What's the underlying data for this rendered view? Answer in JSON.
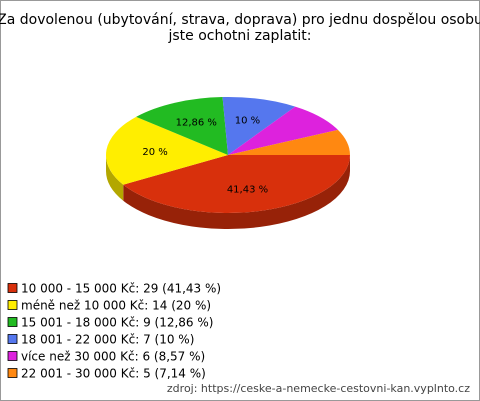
{
  "chart_data": {
    "type": "pie",
    "title": [
      "Za dovolenou (ubytování, strava, doprava) pro jednu dospělou osobu",
      "jste ochotni zaplatit:"
    ],
    "categories": [
      "10 000 - 15 000 Kč: 29 (41,43 %)",
      "méně než 10 000 Kč: 14 (20 %)",
      "15 001 - 18 000 Kč: 9 (12,86 %)",
      "18 001 - 22 000 Kč: 7 (10 %)",
      "více než 30 000 Kč: 6 (8,57 %)",
      "22 001 - 30 000 Kč: 5 (7,14 %)"
    ],
    "values": [
      41.43,
      20,
      12.86,
      10,
      8.57,
      7.14
    ],
    "value_labels": [
      "41,43 %",
      "20 %",
      "12,86 %",
      "10 %",
      null,
      null
    ],
    "colors": [
      "#d8300c",
      "#ffee00",
      "#22bb22",
      "#5577ee",
      "#dd22dd",
      "#ff8811"
    ],
    "source": "zdroj: https://ceske-a-nemecke-cestovni-kan.vyplnto.cz"
  }
}
